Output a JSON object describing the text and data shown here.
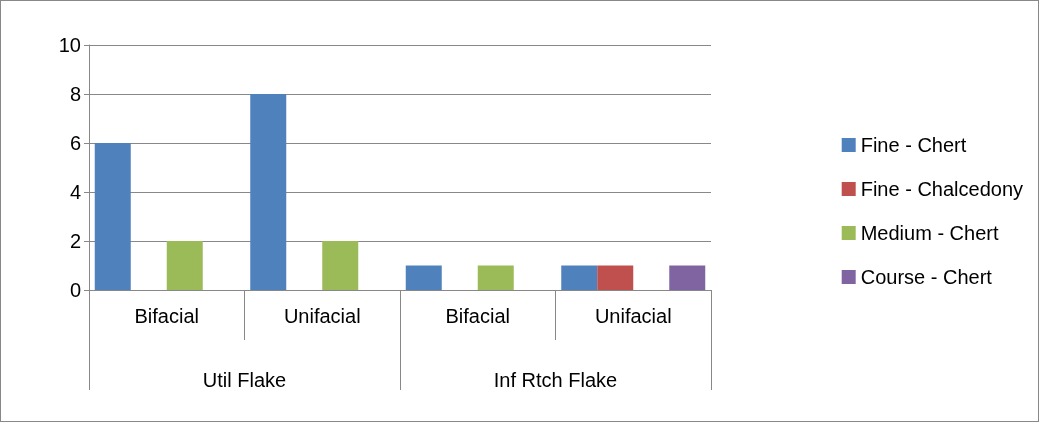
{
  "chart_data": {
    "type": "bar",
    "categories": [
      "Bifacial",
      "Unifacial",
      "Bifacial",
      "Unifacial"
    ],
    "annotations": [
      "Util Flake",
      "Inf Rtch Flake"
    ],
    "series": [
      {
        "name": "Fine - Chert",
        "color": "#4f81bd",
        "values": [
          6,
          8,
          1,
          1
        ]
      },
      {
        "name": "Fine - Chalcedony",
        "color": "#c0504d",
        "values": [
          null,
          null,
          null,
          1
        ]
      },
      {
        "name": "Medium - Chert",
        "color": "#9bbb59",
        "values": [
          2,
          2,
          1,
          null
        ]
      },
      {
        "name": "Course - Chert",
        "color": "#8064a2",
        "values": [
          null,
          null,
          null,
          1
        ]
      }
    ],
    "ylim": [
      0,
      10
    ],
    "yticks": [
      0,
      2,
      4,
      6,
      8,
      10
    ],
    "grid": "y",
    "legend": "right"
  }
}
